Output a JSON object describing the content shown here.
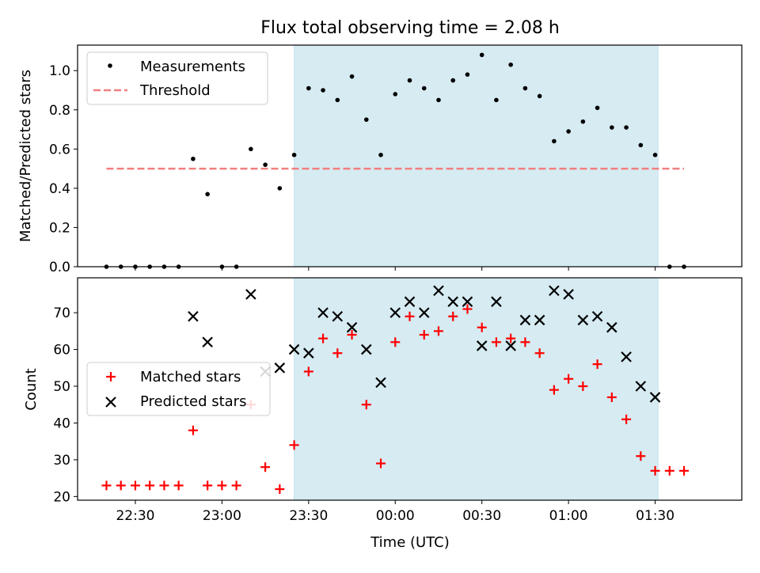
{
  "chart_data": [
    {
      "type": "scatter",
      "title": "Flux total observing time = 2.08 h",
      "xlabel": "",
      "ylabel": "Matched/Predicted stars",
      "xlim": [
        "22:10",
        "02:00"
      ],
      "ylim": [
        0.0,
        1.13
      ],
      "yticks": [
        "0.0",
        "0.2",
        "0.4",
        "0.6",
        "0.8",
        "1.0"
      ],
      "shaded_span": [
        "23:25",
        "01:31"
      ],
      "threshold": {
        "name": "Threshold",
        "value": 0.5,
        "x_range": [
          "22:20",
          "01:40"
        ],
        "color": "#f08080"
      },
      "legend": [
        "Measurements",
        "Threshold"
      ],
      "series": [
        {
          "name": "Measurements",
          "x": [
            "22:20",
            "22:25",
            "22:30",
            "22:35",
            "22:40",
            "22:45",
            "22:50",
            "22:55",
            "23:00",
            "23:05",
            "23:10",
            "23:15",
            "23:20",
            "23:25",
            "23:30",
            "23:35",
            "23:40",
            "23:45",
            "23:50",
            "23:55",
            "00:00",
            "00:05",
            "00:10",
            "00:15",
            "00:20",
            "00:25",
            "00:30",
            "00:35",
            "00:40",
            "00:45",
            "00:50",
            "00:55",
            "01:00",
            "01:05",
            "01:10",
            "01:15",
            "01:20",
            "01:25",
            "01:30",
            "01:35",
            "01:40"
          ],
          "y": [
            0,
            0,
            0,
            0,
            0,
            0,
            0.55,
            0.37,
            0,
            0,
            0.6,
            0.52,
            0.4,
            0.57,
            0.91,
            0.9,
            0.85,
            0.97,
            0.75,
            0.57,
            0.88,
            0.95,
            0.91,
            0.85,
            0.95,
            0.98,
            1.08,
            0.85,
            1.03,
            0.91,
            0.87,
            0.64,
            0.69,
            0.74,
            0.81,
            0.71,
            0.71,
            0.62,
            0.57,
            0,
            0
          ]
        }
      ]
    },
    {
      "type": "scatter",
      "title": "",
      "xlabel": "Time (UTC)",
      "ylabel": "Count",
      "xlim": [
        "22:10",
        "02:00"
      ],
      "ylim": [
        19,
        79.5
      ],
      "yticks": [
        "20",
        "30",
        "40",
        "50",
        "60",
        "70"
      ],
      "xticks": [
        "22:30",
        "23:00",
        "23:30",
        "00:00",
        "00:30",
        "01:00",
        "01:30"
      ],
      "shaded_span": [
        "23:25",
        "01:31"
      ],
      "legend": [
        "Matched stars",
        "Predicted stars"
      ],
      "series": [
        {
          "name": "Matched stars",
          "marker": "+",
          "color": "#ff0000",
          "x": [
            "22:20",
            "22:25",
            "22:30",
            "22:35",
            "22:40",
            "22:45",
            "22:50",
            "22:55",
            "23:00",
            "23:05",
            "23:10",
            "23:15",
            "23:20",
            "23:25",
            "23:30",
            "23:35",
            "23:40",
            "23:45",
            "23:50",
            "23:55",
            "00:00",
            "00:05",
            "00:10",
            "00:15",
            "00:20",
            "00:25",
            "00:30",
            "00:35",
            "00:40",
            "00:45",
            "00:50",
            "00:55",
            "01:00",
            "01:05",
            "01:10",
            "01:15",
            "01:20",
            "01:25",
            "01:30",
            "01:35",
            "01:40"
          ],
          "y": [
            23,
            23,
            23,
            23,
            23,
            23,
            38,
            23,
            23,
            23,
            45,
            28,
            22,
            34,
            54,
            63,
            59,
            64,
            45,
            29,
            62,
            69,
            64,
            65,
            69,
            71,
            66,
            62,
            63,
            62,
            59,
            49,
            52,
            50,
            56,
            47,
            41,
            31,
            27,
            27,
            27
          ]
        },
        {
          "name": "Predicted stars",
          "marker": "x",
          "color": "#000000",
          "x": [
            "22:50",
            "22:55",
            "23:10",
            "23:15",
            "23:20",
            "23:25",
            "23:30",
            "23:35",
            "23:40",
            "23:45",
            "23:50",
            "23:55",
            "00:00",
            "00:05",
            "00:10",
            "00:15",
            "00:20",
            "00:25",
            "00:30",
            "00:35",
            "00:40",
            "00:45",
            "00:50",
            "00:55",
            "01:00",
            "01:05",
            "01:10",
            "01:15",
            "01:20",
            "01:25",
            "01:30"
          ],
          "y": [
            69,
            62,
            75,
            54,
            55,
            60,
            59,
            70,
            69,
            66,
            60,
            51,
            70,
            73,
            70,
            76,
            73,
            73,
            61,
            73,
            61,
            68,
            68,
            76,
            75,
            68,
            69,
            66,
            58,
            50,
            47
          ]
        }
      ]
    }
  ]
}
